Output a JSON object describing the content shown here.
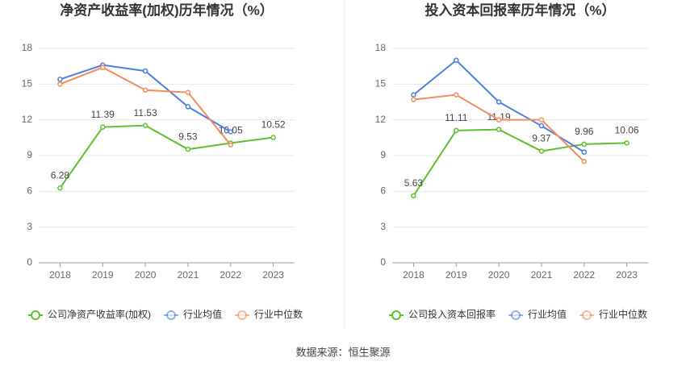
{
  "chart_data": [
    {
      "type": "line",
      "title": "净资产收益率(加权)历年情况（%）",
      "categories": [
        "2018",
        "2019",
        "2020",
        "2021",
        "2022",
        "2023"
      ],
      "series": [
        {
          "name": "公司净资产收益率(加权)",
          "color": "#5cc22c",
          "values": [
            6.28,
            11.39,
            11.53,
            9.53,
            10.05,
            10.52
          ]
        },
        {
          "name": "行业均值",
          "color": "#4a7ee0",
          "values": [
            15.4,
            16.6,
            16.1,
            13.1,
            11.0,
            null
          ]
        },
        {
          "name": "行业中位数",
          "color": "#f28c5a",
          "values": [
            15.0,
            16.4,
            14.5,
            14.3,
            9.9,
            null
          ]
        }
      ],
      "ylim": [
        0,
        18
      ],
      "yticks": [
        0,
        3,
        6,
        9,
        12,
        15,
        18
      ],
      "grid": true,
      "legend": "bottom"
    },
    {
      "type": "line",
      "title": "投入资本回报率历年情况（%）",
      "categories": [
        "2018",
        "2019",
        "2020",
        "2021",
        "2022",
        "2023"
      ],
      "series": [
        {
          "name": "公司投入资本回报率",
          "color": "#5cc22c",
          "values": [
            5.63,
            11.11,
            11.19,
            9.37,
            9.96,
            10.06
          ]
        },
        {
          "name": "行业均值",
          "color": "#4a7ee0",
          "values": [
            14.1,
            17.0,
            13.5,
            11.5,
            9.3,
            null
          ]
        },
        {
          "name": "行业中位数",
          "color": "#f28c5a",
          "values": [
            13.7,
            14.1,
            12.0,
            12.0,
            8.5,
            null
          ]
        }
      ],
      "ylim": [
        0,
        18
      ],
      "yticks": [
        0,
        3,
        6,
        9,
        12,
        15,
        18
      ],
      "grid": true,
      "legend": "bottom"
    }
  ],
  "source": "数据来源：恒生聚源"
}
